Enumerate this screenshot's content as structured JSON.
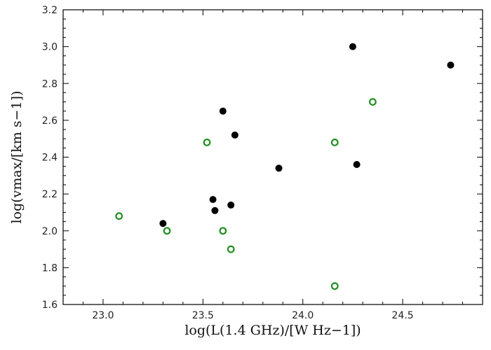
{
  "chart_data": {
    "type": "scatter",
    "xlabel": "log(L(1.4 GHz)/[W Hz−1])",
    "ylabel": "log(vmax/[km s−1])",
    "xlim": [
      22.8,
      24.9
    ],
    "ylim": [
      1.6,
      3.2
    ],
    "xticks": [
      "23.0",
      "23.5",
      "24.0",
      "24.5"
    ],
    "yticks": [
      "1.6",
      "1.8",
      "2.0",
      "2.2",
      "2.4",
      "2.6",
      "2.8",
      "3.0",
      "3.2"
    ],
    "grid": false,
    "legend": "none",
    "series": [
      {
        "marker": "filled-circle",
        "color": "#000000",
        "points": [
          {
            "x": 23.3,
            "y": 2.04
          },
          {
            "x": 23.55,
            "y": 2.17
          },
          {
            "x": 23.56,
            "y": 2.11
          },
          {
            "x": 23.6,
            "y": 2.65
          },
          {
            "x": 23.64,
            "y": 2.14
          },
          {
            "x": 23.66,
            "y": 2.52
          },
          {
            "x": 23.88,
            "y": 2.34
          },
          {
            "x": 24.25,
            "y": 3.0
          },
          {
            "x": 24.27,
            "y": 2.36
          },
          {
            "x": 24.74,
            "y": 2.9
          }
        ]
      },
      {
        "marker": "open-circle",
        "color": "#1f8f1f",
        "points": [
          {
            "x": 23.08,
            "y": 2.08
          },
          {
            "x": 23.32,
            "y": 2.0
          },
          {
            "x": 23.52,
            "y": 2.48
          },
          {
            "x": 23.6,
            "y": 2.0
          },
          {
            "x": 23.64,
            "y": 1.9
          },
          {
            "x": 24.16,
            "y": 2.48
          },
          {
            "x": 24.16,
            "y": 1.7
          },
          {
            "x": 24.35,
            "y": 2.7
          }
        ]
      }
    ]
  }
}
